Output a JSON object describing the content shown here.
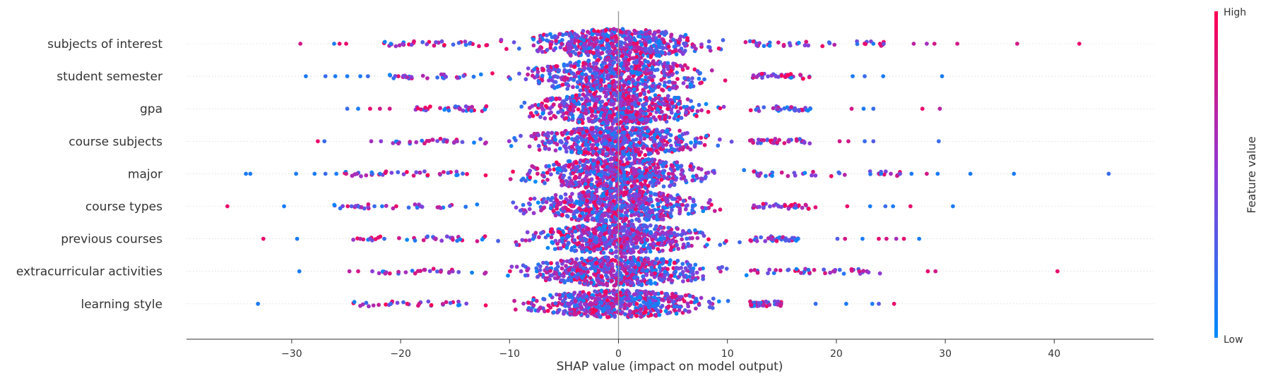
{
  "chart_data": {
    "type": "scatter",
    "subtype": "shap-beeswarm",
    "title": "",
    "xlabel": "SHAP value (impact on model output)",
    "ylabel": "",
    "xlim": [
      -40,
      49
    ],
    "xticks": [
      -30,
      -20,
      -10,
      0,
      10,
      20,
      30,
      40
    ],
    "xtick_labels": [
      "−30",
      "−20",
      "−10",
      "0",
      "10",
      "20",
      "30",
      "40"
    ],
    "zero_line": true,
    "grid": false,
    "colorbar": {
      "title": "Feature value",
      "high_label": "High",
      "low_label": "Low",
      "low_color": "#008bfb",
      "high_color": "#ff0051"
    },
    "features": [
      {
        "name": "subjects of interest",
        "min": -29.2,
        "max": 42.3,
        "spread": 20,
        "outliers": [
          [
            -29.2,
            0.8
          ],
          [
            -26.1,
            0.1
          ],
          [
            -25.6,
            0.9
          ],
          [
            -25.0,
            0.9
          ],
          [
            -20.9,
            0.1
          ],
          [
            -19.8,
            0.5
          ],
          [
            22.6,
            0.9
          ],
          [
            23.4,
            0.1
          ],
          [
            24.0,
            0.9
          ],
          [
            27.1,
            0.7
          ],
          [
            28.3,
            0.6
          ],
          [
            29.0,
            0.8
          ],
          [
            31.1,
            0.8
          ],
          [
            36.6,
            0.8
          ],
          [
            42.3,
            0.9
          ]
        ]
      },
      {
        "name": "student semester",
        "min": -28.7,
        "max": 29.7,
        "spread": 24,
        "outliers": [
          [
            -28.7,
            0.1
          ],
          [
            -26.9,
            0.2
          ],
          [
            -26.0,
            0.1
          ],
          [
            -24.9,
            0.1
          ],
          [
            -23.7,
            0.1
          ],
          [
            -23.0,
            0.2
          ],
          [
            21.5,
            0.1
          ],
          [
            22.6,
            0.2
          ],
          [
            24.3,
            0.1
          ],
          [
            29.7,
            0.1
          ]
        ]
      },
      {
        "name": "gpa",
        "min": -24.9,
        "max": 29.5,
        "spread": 22,
        "outliers": [
          [
            -24.9,
            0.2
          ],
          [
            -23.9,
            0.1
          ],
          [
            -22.8,
            0.9
          ],
          [
            -21.9,
            0.8
          ],
          [
            -21.0,
            0.8
          ],
          [
            21.4,
            0.8
          ],
          [
            22.5,
            0.1
          ],
          [
            23.4,
            0.2
          ],
          [
            27.9,
            0.9
          ],
          [
            29.5,
            0.7
          ]
        ]
      },
      {
        "name": "course subjects",
        "min": -27.6,
        "max": 29.4,
        "spread": 20,
        "outliers": [
          [
            -27.6,
            0.9
          ],
          [
            -27.0,
            0.2
          ],
          [
            -22.7,
            0.6
          ],
          [
            -21.8,
            0.5
          ],
          [
            20.3,
            0.8
          ],
          [
            21.1,
            0.8
          ],
          [
            22.6,
            0.2
          ],
          [
            23.4,
            0.3
          ],
          [
            29.4,
            0.2
          ]
        ]
      },
      {
        "name": "major",
        "min": -34.2,
        "max": 45.0,
        "spread": 22,
        "outliers": [
          [
            -34.2,
            0.1
          ],
          [
            -33.8,
            0.1
          ],
          [
            -29.6,
            0.1
          ],
          [
            -27.9,
            0.1
          ],
          [
            -26.9,
            0.2
          ],
          [
            -25.9,
            0.1
          ],
          [
            -25.0,
            0.8
          ],
          [
            -24.0,
            0.6
          ],
          [
            -22.6,
            0.2
          ],
          [
            -21.9,
            0.1
          ],
          [
            24.1,
            0.1
          ],
          [
            25.0,
            0.6
          ],
          [
            26.9,
            0.1
          ],
          [
            28.3,
            0.8
          ],
          [
            29.3,
            0.1
          ],
          [
            32.3,
            0.1
          ],
          [
            36.3,
            0.1
          ],
          [
            45.0,
            0.2
          ]
        ]
      },
      {
        "name": "course types",
        "min": -35.9,
        "max": 30.7,
        "spread": 22,
        "outliers": [
          [
            -35.9,
            0.9
          ],
          [
            -30.7,
            0.1
          ],
          [
            -24.5,
            0.3
          ],
          [
            -22.4,
            0.2
          ],
          [
            -21.7,
            0.1
          ],
          [
            -20.4,
            0.9
          ],
          [
            21.0,
            0.9
          ],
          [
            23.1,
            0.1
          ],
          [
            24.5,
            0.2
          ],
          [
            25.2,
            0.1
          ],
          [
            26.8,
            0.9
          ],
          [
            30.7,
            0.1
          ]
        ]
      },
      {
        "name": "previous courses",
        "min": -32.6,
        "max": 27.6,
        "spread": 20,
        "outliers": [
          [
            -32.6,
            0.9
          ],
          [
            -29.5,
            0.1
          ],
          [
            -23.7,
            0.7
          ],
          [
            -22.8,
            0.4
          ],
          [
            -21.5,
            0.2
          ],
          [
            20.1,
            0.3
          ],
          [
            20.8,
            0.8
          ],
          [
            22.4,
            0.1
          ],
          [
            23.9,
            0.9
          ],
          [
            24.6,
            0.8
          ],
          [
            25.5,
            0.6
          ],
          [
            26.2,
            0.9
          ],
          [
            27.6,
            0.1
          ]
        ]
      },
      {
        "name": "extracurricular activities",
        "min": -29.3,
        "max": 40.3,
        "spread": 20,
        "outliers": [
          [
            -29.3,
            0.1
          ],
          [
            -24.7,
            0.7
          ],
          [
            -23.9,
            0.8
          ],
          [
            -22.6,
            0.5
          ],
          [
            22.1,
            0.8
          ],
          [
            22.8,
            0.6
          ],
          [
            28.4,
            0.9
          ],
          [
            29.1,
            0.8
          ],
          [
            40.3,
            0.9
          ]
        ]
      },
      {
        "name": "learning style",
        "min": -33.1,
        "max": 25.3,
        "spread": 18,
        "outliers": [
          [
            -33.1,
            0.1
          ],
          [
            -20.9,
            0.2
          ],
          [
            -19.4,
            0.9
          ],
          [
            -18.3,
            0.8
          ],
          [
            18.1,
            0.2
          ],
          [
            20.9,
            0.1
          ],
          [
            23.3,
            0.1
          ],
          [
            23.9,
            0.3
          ],
          [
            25.3,
            0.9
          ]
        ]
      }
    ]
  }
}
